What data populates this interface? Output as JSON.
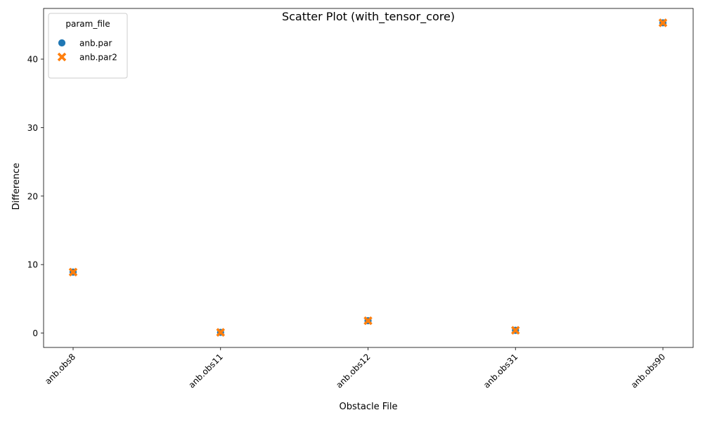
{
  "chart_data": {
    "type": "scatter",
    "title": "Scatter Plot (with_tensor_core)",
    "xlabel": "Obstacle File",
    "ylabel": "Difference",
    "categories": [
      "anb.obs8",
      "anb.obs11",
      "anb.obs12",
      "anb.obs31",
      "anb.obs90"
    ],
    "ylim": [
      -2.1,
      47.4
    ],
    "yticks": [
      0,
      10,
      20,
      30,
      40
    ],
    "grid": false,
    "legend": {
      "title": "param_file",
      "placement": "top-left"
    },
    "series": [
      {
        "name": "anb.par",
        "marker": "circle",
        "color": "#1f77b4",
        "values": [
          8.9,
          0.1,
          1.8,
          0.4,
          45.3
        ]
      },
      {
        "name": "anb.par2",
        "marker": "x",
        "color": "#ff7f0e",
        "values": [
          8.9,
          0.1,
          1.8,
          0.4,
          45.3
        ]
      }
    ]
  }
}
